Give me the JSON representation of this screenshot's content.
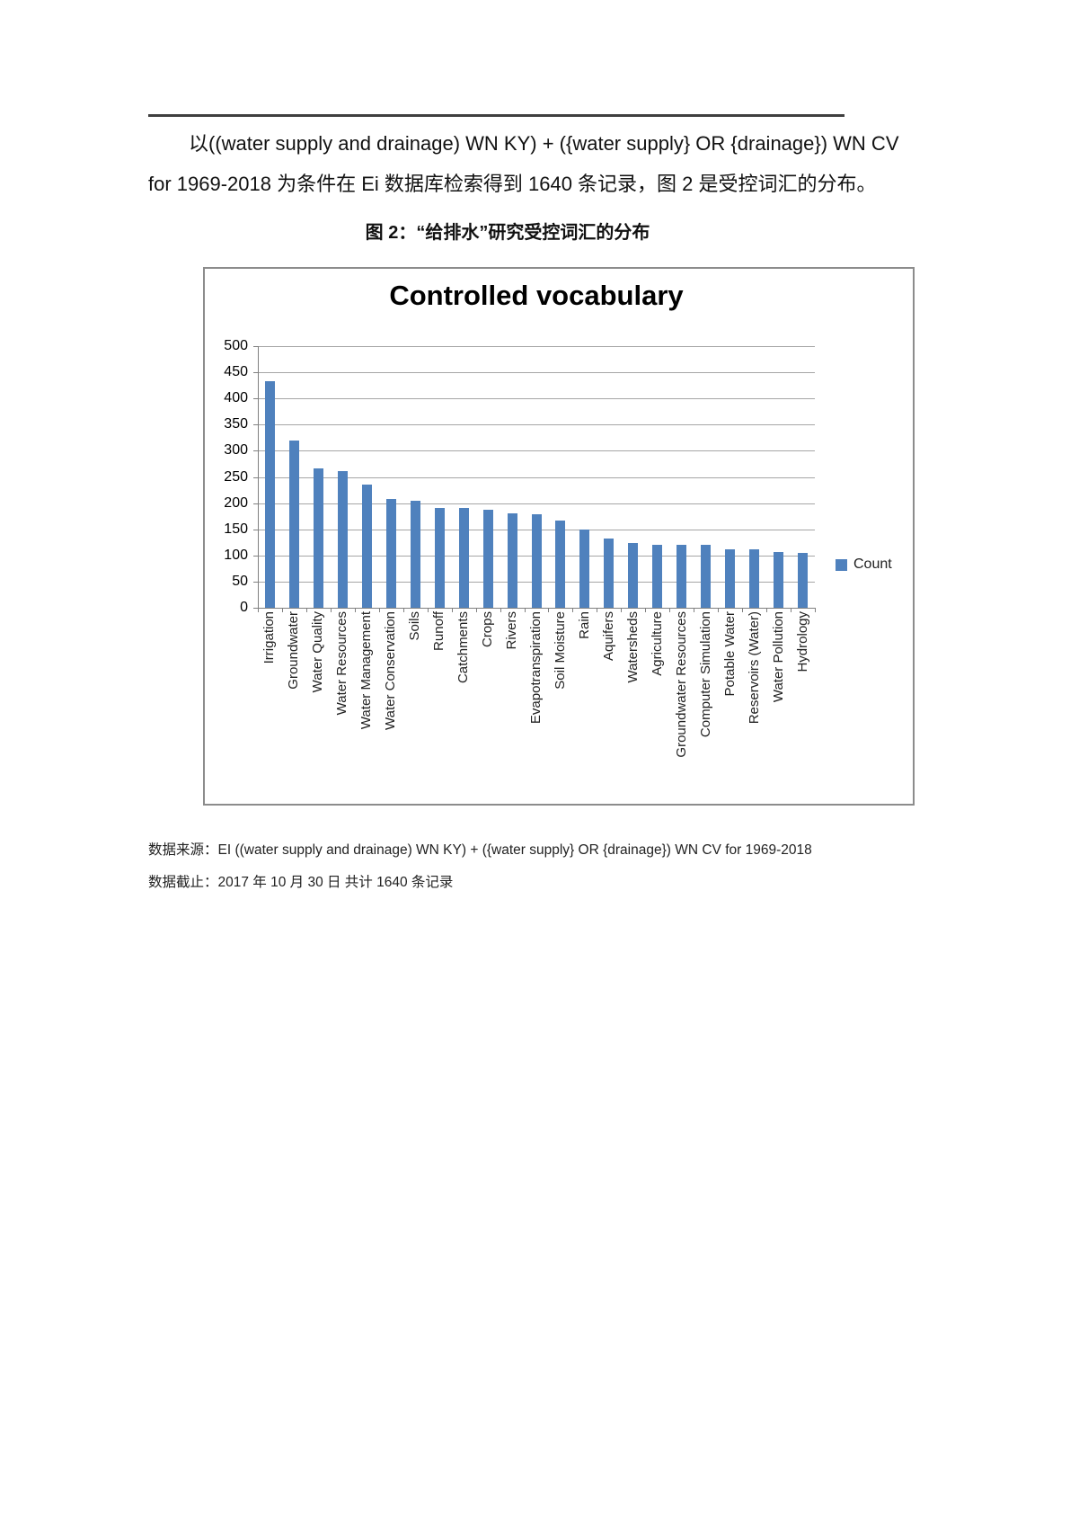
{
  "page": {
    "paragraph_line1": "以((water supply and drainage) WN KY) + ({water supply} OR {drainage}) WN CV",
    "paragraph_line2": "for 1969-2018 为条件在 Ei 数据库检索得到 1640 条记录，图 2 是受控词汇的分布。",
    "figure_caption": "图 2：“给排水”研究受控词汇的分布",
    "source_line1": "数据来源：EI ((water supply and drainage) WN KY) + ({water supply} OR {drainage}) WN CV for 1969-2018",
    "source_line2": "数据截止：2017 年 10 月 30 日  共计 1640 条记录"
  },
  "chart_data": {
    "type": "bar",
    "title": "Controlled vocabulary",
    "series_name": "Count",
    "categories": [
      "Irrigation",
      "Groundwater",
      "Water Quality",
      "Water Resources",
      "Water Management",
      "Water Conservation",
      "Soils",
      "Runoff",
      "Catchments",
      "Crops",
      "Rivers",
      "Evapotranspiration",
      "Soil Moisture",
      "Rain",
      "Aquifers",
      "Watersheds",
      "Agriculture",
      "Groundwater Resources",
      "Computer Simulation",
      "Potable Water",
      "Reservoirs (Water)",
      "Water Pollution",
      "Hydrology"
    ],
    "values": [
      433,
      320,
      266,
      261,
      236,
      208,
      205,
      191,
      191,
      187,
      181,
      179,
      167,
      149,
      132,
      124,
      121,
      121,
      121,
      112,
      111,
      107,
      105
    ],
    "ylim": [
      0,
      500
    ],
    "ytick_step": 50,
    "yticks_top_to_bottom": [
      500,
      450,
      400,
      350,
      300,
      250,
      200,
      150,
      100,
      50,
      0
    ],
    "grid": true,
    "legend_position": "right",
    "bar_color": "#4F81BD",
    "gridline_color": "#a6a6a6",
    "axis_color": "#808080"
  }
}
